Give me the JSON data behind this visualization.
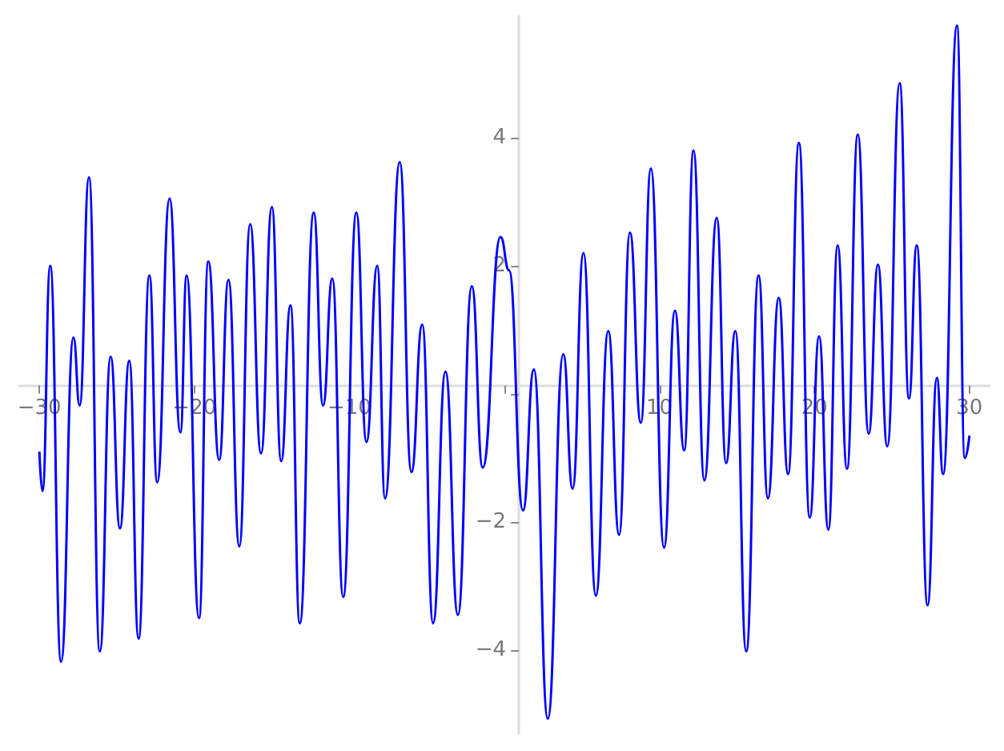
{
  "chart_data": {
    "type": "line",
    "marker": "none",
    "x": [
      -30,
      -29.8,
      -29.3,
      -28.6,
      -27.8,
      -27.4,
      -26.8,
      -26.1,
      -25.4,
      -24.8,
      -24.2,
      -23.6,
      -22.9,
      -22.4,
      -21.6,
      -20.9,
      -20.5,
      -19.7,
      -19.1,
      -18.4,
      -17.8,
      -17.1,
      -16.4,
      -15.7,
      -15,
      -14.4,
      -13.8,
      -13.2,
      -12.3,
      -11.7,
      -11.1,
      -10.4,
      -9.55,
      -8.9,
      -8.2,
      -7.7,
      -6.75,
      -6,
      -5.3,
      -4.6,
      -3.8,
      -3,
      -2.1,
      -1.4,
      -0.25,
      0.3,
      1.2,
      1.9,
      2.8,
      3.8,
      4.4,
      5.1,
      5.9,
      6.7,
      7.4,
      8.1,
      8.8,
      9.45,
      10.3,
      11,
      11.6,
      12.2,
      12.9,
      13.7,
      14.3,
      14.9,
      15.6,
      16.4,
      17,
      17.7,
      18.3,
      19,
      19.7,
      20.3,
      20.9,
      21.5,
      22.1,
      22.8,
      23.5,
      24.1,
      24.7,
      25.5,
      26.1,
      26.6,
      27.3,
      27.9,
      28.3,
      29.2,
      29.7,
      30
    ],
    "series": [
      {
        "color": "#0000ff",
        "values": [
          -0.9,
          -1.52,
          2,
          -4.18,
          0.88,
          -0.18,
          3.38,
          -4.02,
          0.58,
          -2.1,
          0.52,
          -3.82,
          1.85,
          -1.38,
          3.05,
          -0.6,
          1.85,
          -3.5,
          2.07,
          -1.03,
          1.78,
          -2.38,
          2.65,
          -0.93,
          2.92,
          -1.05,
          1.38,
          -3.58,
          2.83,
          -0.18,
          1.8,
          -3.17,
          2.83,
          -0.75,
          2,
          -1.63,
          3.62,
          -1.22,
          1.08,
          -3.58,
          0.35,
          -3.45,
          1.68,
          -1.15,
          2.45,
          1.93,
          -1.82,
          0.38,
          -5.07,
          0.62,
          -1.48,
          2.2,
          -3.15,
          0.98,
          -2.2,
          2.52,
          -0.45,
          3.52,
          -2.4,
          1.3,
          -0.88,
          3.8,
          -1.35,
          2.75,
          -1.08,
          0.98,
          -4.02,
          1.85,
          -1.63,
          1.5,
          -1.25,
          3.92,
          -1.93,
          0.9,
          -2.12,
          2.32,
          -1.17,
          4.05,
          -0.62,
          2.02,
          -0.82,
          4.85,
          -0.07,
          2.32,
          -3.3,
          0.25,
          -1.25,
          5.75,
          -1,
          -0.65
        ]
      }
    ],
    "xlim": [
      -31.3,
      31.3
    ],
    "ylim": [
      -5.3,
      5.9
    ],
    "xticks": [
      -30,
      -20,
      -10,
      {
        "value": 0,
        "label": null
      },
      10,
      20,
      30
    ],
    "yticks": [
      -4,
      -2,
      {
        "value": 0,
        "label": null
      },
      2,
      4
    ]
  }
}
